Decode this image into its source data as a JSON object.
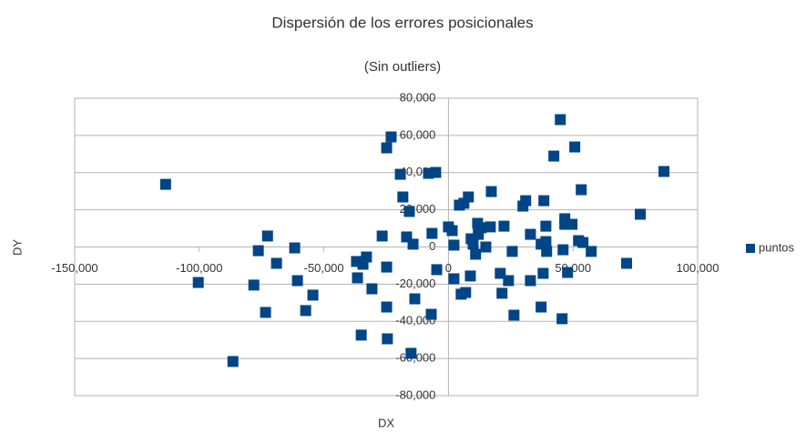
{
  "chart_data": {
    "type": "scatter",
    "title": "Dispersión de los errores posicionales",
    "subtitle": "(Sin outliers)",
    "x_label": "DX",
    "y_label": "DY",
    "xlim": [
      -150000,
      100000
    ],
    "xticks": [
      {
        "value": -150000,
        "label": "-150,000"
      },
      {
        "value": -100000,
        "label": "-100,000"
      },
      {
        "value": -50000,
        "label": "-50,000"
      },
      0,
      {
        "value": 50000,
        "label": "50,000"
      },
      {
        "value": 100000,
        "label": "100,000"
      }
    ],
    "ylim": [
      -80000,
      80000
    ],
    "yticks": [
      {
        "value": -80000,
        "label": "-80,000"
      },
      {
        "value": -60000,
        "label": "-60,000"
      },
      {
        "value": -40000,
        "label": "-40,000"
      },
      {
        "value": -20000,
        "label": "-20,000"
      },
      0,
      {
        "value": 20000,
        "label": "20,000"
      },
      {
        "value": 40000,
        "label": "40,000"
      },
      {
        "value": 60000,
        "label": "60,000"
      },
      {
        "value": 80000,
        "label": "80,000"
      }
    ],
    "grid": true,
    "legend": "right",
    "series": [
      {
        "name": "puntos",
        "color": "#004586",
        "x": [
          -113500,
          -100400,
          -86500,
          -78100,
          -76300,
          -73400,
          -72600,
          -69000,
          -61700,
          -60600,
          -57300,
          -54400,
          -36500,
          -36900,
          -34300,
          -32900,
          -35000,
          -30700,
          -26600,
          -24800,
          -23000,
          -24800,
          -24800,
          -24500,
          -19300,
          -18300,
          -16800,
          -15700,
          -14200,
          -13500,
          -15000,
          -8000,
          -5100,
          -6600,
          -6900,
          -4700,
          0,
          1500,
          2200,
          2200,
          4400,
          6200,
          8000,
          5100,
          6900,
          8800,
          9100,
          9900,
          10900,
          12000,
          11700,
          13100,
          15000,
          16800,
          17200,
          20800,
          22300,
          21500,
          24100,
          25600,
          26300,
          29900,
          31000,
          32900,
          32900,
          37200,
          38300,
          37200,
          38000,
          39100,
          39100,
          39400,
          42300,
          44900,
          45600,
          46000,
          46700,
          46700,
          47800,
          49600,
          50700,
          52200,
          53300,
          54000,
          57300,
          71500,
          77000,
          86500
        ],
        "values": [
          33700,
          -19100,
          -61600,
          -20500,
          -2000,
          -35200,
          5900,
          -8800,
          -500,
          -18100,
          -34200,
          -25900,
          -16600,
          -7800,
          -9300,
          -5400,
          -47400,
          -22500,
          5900,
          53300,
          59200,
          -10800,
          -32300,
          -49400,
          39100,
          26900,
          5400,
          19100,
          1500,
          -27900,
          -57200,
          39600,
          40100,
          7300,
          -36200,
          -12200,
          10800,
          8800,
          1000,
          -17100,
          22500,
          23500,
          26900,
          -25400,
          -24500,
          -15600,
          4400,
          1500,
          -3900,
          6800,
          12700,
          10300,
          0,
          10800,
          29800,
          -14200,
          11200,
          -24900,
          -18100,
          -2400,
          -36700,
          22000,
          24900,
          6800,
          -18100,
          1500,
          24900,
          -32300,
          -14200,
          2900,
          11200,
          -2400,
          48900,
          68500,
          -38600,
          -1500,
          15200,
          12200,
          -13700,
          12200,
          53800,
          3400,
          30800,
          2400,
          -2400,
          -8800,
          17600,
          40600
        ]
      }
    ]
  }
}
